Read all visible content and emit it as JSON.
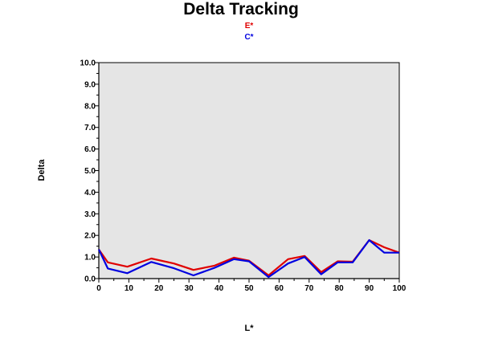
{
  "chart_data": {
    "type": "line",
    "title": "Delta Tracking",
    "xlabel": "L*",
    "ylabel": "Delta",
    "xlim": [
      0,
      100
    ],
    "ylim": [
      0,
      10
    ],
    "x_ticks": [
      0,
      10,
      20,
      30,
      40,
      50,
      60,
      70,
      80,
      90,
      100
    ],
    "y_ticks": [
      0.0,
      1.0,
      2.0,
      3.0,
      4.0,
      5.0,
      6.0,
      7.0,
      8.0,
      9.0,
      10.0
    ],
    "y_tick_labels": [
      "0.0",
      "1.0",
      "2.0",
      "3.0",
      "4.0",
      "5.0",
      "6.0",
      "7.0",
      "8.0",
      "9.0",
      "10.0"
    ],
    "grid": false,
    "plot_background": "#e5e5e5",
    "legend_position": "top-center",
    "series": [
      {
        "name": "E*",
        "color": "#e00000",
        "x": [
          0,
          3,
          9.5,
          17.5,
          25,
          31.5,
          38.5,
          45,
          50,
          56.5,
          63,
          68.5,
          74,
          79.5,
          84.5,
          90,
          95,
          100
        ],
        "y": [
          1.35,
          0.75,
          0.55,
          0.93,
          0.7,
          0.4,
          0.6,
          0.97,
          0.83,
          0.15,
          0.9,
          1.05,
          0.3,
          0.8,
          0.78,
          1.78,
          1.45,
          1.2
        ]
      },
      {
        "name": "C*",
        "color": "#0000e0",
        "x": [
          0,
          3,
          9.5,
          17.5,
          25,
          31.5,
          38.5,
          45,
          50,
          56.5,
          63,
          68.5,
          74,
          79.5,
          84.5,
          90,
          95,
          100
        ],
        "y": [
          1.35,
          0.47,
          0.25,
          0.77,
          0.48,
          0.15,
          0.5,
          0.9,
          0.8,
          0.07,
          0.7,
          1.0,
          0.2,
          0.75,
          0.75,
          1.78,
          1.2,
          1.2
        ]
      }
    ]
  }
}
